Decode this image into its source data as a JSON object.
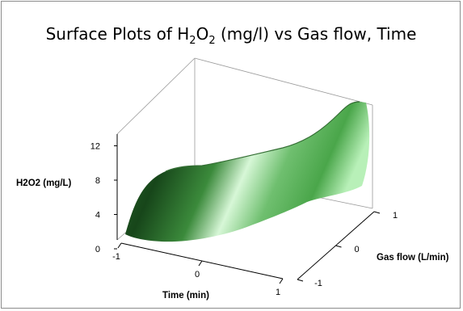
{
  "chart_data": {
    "type": "surface",
    "title": {
      "prefix": "Surface Plots of H",
      "sub1": "2",
      "mid": "O",
      "sub2": "2",
      "suffix": " (mg/l) vs Gas flow, Time"
    },
    "zlabel": "H2O2 (mg/L)",
    "xlabel": "Time (min)",
    "ylabel": "Gas flow (L/min)",
    "z_ticks": [
      "0",
      "4",
      "8",
      "12"
    ],
    "x_ticks": [
      "-1",
      "0",
      "1"
    ],
    "y_ticks": [
      "-1",
      "0",
      "1"
    ],
    "xlim": [
      -1,
      1
    ],
    "ylim": [
      -1,
      1
    ],
    "zlim": [
      0,
      14
    ],
    "surface": {
      "x": [
        -1,
        0,
        1
      ],
      "y": [
        -1,
        0,
        1
      ],
      "z": [
        [
          1.5,
          3.0,
          4.5
        ],
        [
          6.5,
          8.0,
          11.0
        ],
        [
          8.0,
          10.0,
          13.5
        ]
      ],
      "z_by_note": "z[i][j] at x=x[i], y=y[j]"
    },
    "colors": {
      "dark": "#1f5a1f",
      "mid": "#3f8f3f",
      "light": "#c8f5c8"
    }
  }
}
